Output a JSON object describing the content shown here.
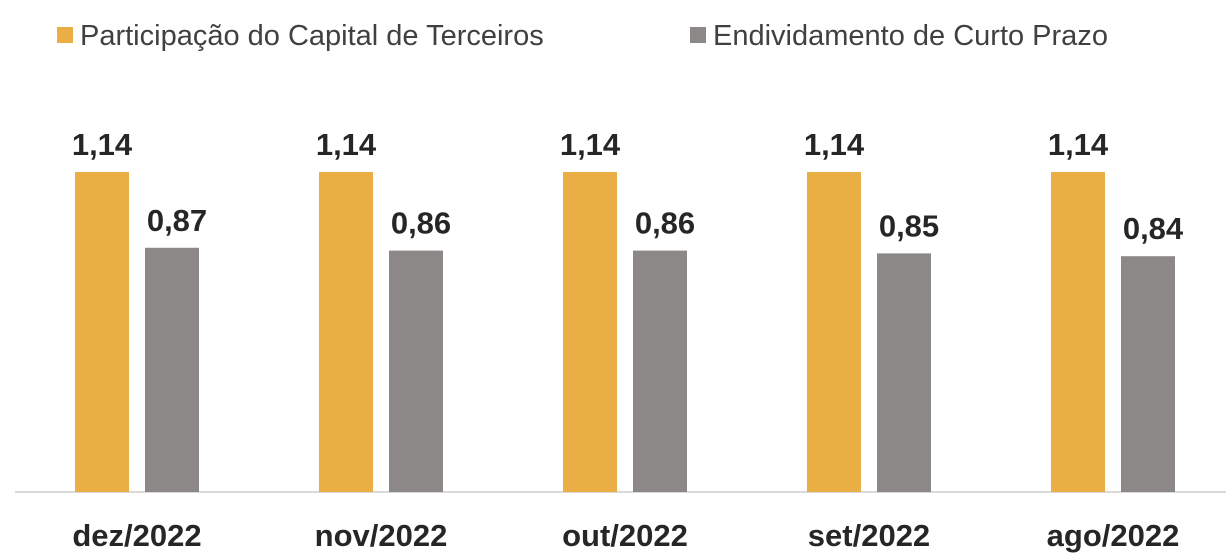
{
  "chart_data": {
    "type": "bar",
    "categories": [
      "dez/2022",
      "nov/2022",
      "out/2022",
      "set/2022",
      "ago/2022"
    ],
    "series": [
      {
        "name": "Participação do Capital de Terceiros",
        "color": "#e9af45",
        "values": [
          1.14,
          1.14,
          1.14,
          1.14,
          1.14
        ],
        "value_labels": [
          "1,14",
          "1,14",
          "1,14",
          "1,14",
          "1,14"
        ]
      },
      {
        "name": "Endividamento de Curto Prazo",
        "color": "#8c8887",
        "values": [
          0.87,
          0.86,
          0.86,
          0.85,
          0.84
        ],
        "value_labels": [
          "0,87",
          "0,86",
          "0,86",
          "0,85",
          "0,84"
        ]
      }
    ],
    "ylim": [
      0,
      1.4
    ],
    "legend": "top"
  }
}
